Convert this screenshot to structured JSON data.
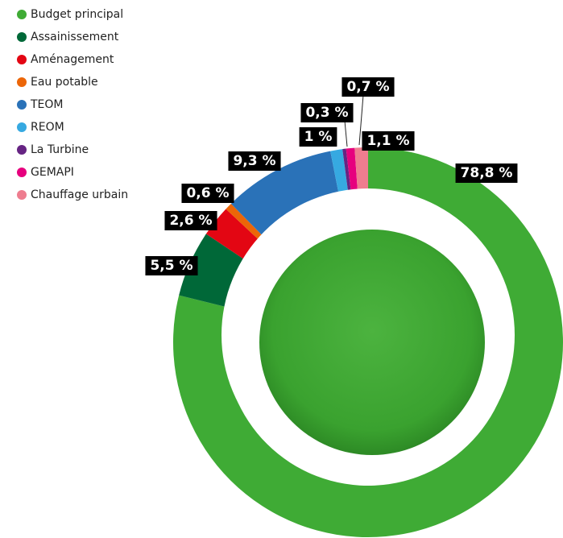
{
  "chart_data": {
    "type": "donut",
    "categories": [
      "Budget principal",
      "Assainissement",
      "Aménagement",
      "Eau potable",
      "TEOM",
      "REOM",
      "La Turbine",
      "GEMAPI",
      "Chauffage urbain"
    ],
    "values": [
      78.8,
      5.5,
      2.6,
      0.6,
      9.3,
      1,
      0.3,
      0.7,
      1.1
    ],
    "value_labels": [
      "78,8 %",
      "5,5 %",
      "2,6 %",
      "0,6 %",
      "9,3 %",
      "1 %",
      "0,3 %",
      "0,7 %",
      "1,1 %"
    ],
    "colors": [
      "#3fab35",
      "#006838",
      "#e30613",
      "#ec6608",
      "#2a72b8",
      "#36a9e1",
      "#662483",
      "#e6007e",
      "#ee7d8f"
    ],
    "legend": "top-left"
  }
}
